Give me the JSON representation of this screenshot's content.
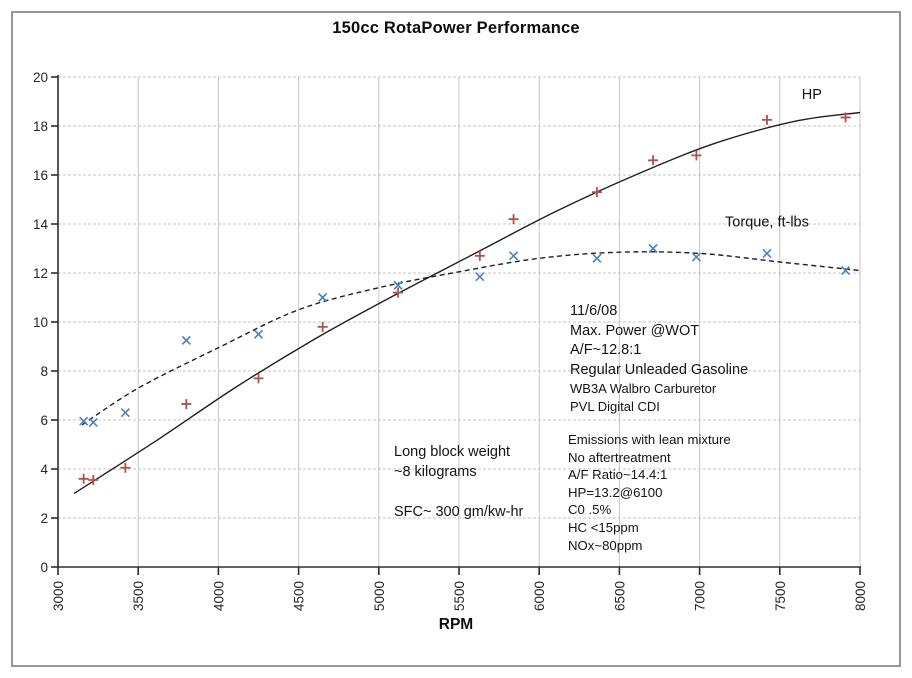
{
  "window": {
    "title": "150cc RotaPower Performance"
  },
  "chart_data": {
    "type": "scatter",
    "title": "150cc RotaPower Performance",
    "xlabel": "RPM",
    "ylabel": "",
    "xlim": [
      3000,
      8000
    ],
    "ylim": [
      0,
      20
    ],
    "x_ticks": [
      3000,
      3500,
      4000,
      4500,
      5000,
      5500,
      6000,
      6500,
      7000,
      7500,
      8000
    ],
    "y_ticks": [
      0,
      2,
      4,
      6,
      8,
      10,
      12,
      14,
      16,
      18,
      20
    ],
    "grid": true,
    "legend_position": "inline-labels",
    "colors": {
      "grid": "#c6c6c6",
      "axis": "#2e2e2e",
      "trend": "#1f1f1f",
      "hp_marker": "#b2504c",
      "torque_marker": "#4f81bd"
    },
    "x": [
      3160,
      3220,
      3420,
      3800,
      4250,
      4650,
      5120,
      5630,
      5840,
      6360,
      6710,
      6980,
      7420,
      7910
    ],
    "series": [
      {
        "name": "HP",
        "data_name": "hp",
        "marker": "plus",
        "color": "#b2504c",
        "values": [
          3.6,
          3.55,
          4.05,
          6.65,
          7.7,
          9.8,
          11.2,
          12.7,
          14.2,
          15.3,
          16.6,
          16.8,
          18.25,
          18.35
        ],
        "trend": {
          "style": "solid",
          "points": [
            [
              3100,
              3.0
            ],
            [
              3600,
              5.1
            ],
            [
              4100,
              7.3
            ],
            [
              4600,
              9.3
            ],
            [
              5100,
              11.1
            ],
            [
              5600,
              12.8
            ],
            [
              6100,
              14.5
            ],
            [
              6600,
              16.0
            ],
            [
              7100,
              17.3
            ],
            [
              7600,
              18.2
            ],
            [
              8000,
              18.55
            ]
          ]
        },
        "label": {
          "text": "HP",
          "x": 7700,
          "y": 19.1
        }
      },
      {
        "name": "Torque, ft-lbs",
        "data_name": "torque",
        "marker": "x",
        "color": "#4f81bd",
        "values": [
          5.95,
          5.9,
          6.3,
          9.25,
          9.5,
          11.0,
          11.5,
          11.85,
          12.7,
          12.6,
          13.0,
          12.65,
          12.8,
          12.1
        ],
        "trend": {
          "style": "dashed",
          "points": [
            [
              3150,
              5.8
            ],
            [
              3500,
              7.3
            ],
            [
              4000,
              8.95
            ],
            [
              4500,
              10.5
            ],
            [
              5000,
              11.4
            ],
            [
              5500,
              12.05
            ],
            [
              6000,
              12.6
            ],
            [
              6500,
              12.85
            ],
            [
              7000,
              12.8
            ],
            [
              7500,
              12.45
            ],
            [
              8000,
              12.1
            ]
          ]
        },
        "label": {
          "text": "Torque, ft-lbs",
          "x": 7420,
          "y": 13.9
        }
      }
    ]
  },
  "annotations": {
    "spec_block": {
      "main": " 11/6/08\nMax. Power @WOT\nA/F~12.8:1\nRegular Unleaded Gasoline",
      "sub": "WB3A Walbro Carburetor\nPVL Digital CDI"
    },
    "emissions_block": "Emissions  with lean mixture\nNo aftertreatment\n A/F Ratio~14.4:1\nHP=13.2@6100\nC0  .5%\nHC  <15ppm\nNOx~80ppm",
    "weight_block": "Long block weight\n~8 kilograms\n\nSFC~ 300 gm/kw-hr"
  }
}
